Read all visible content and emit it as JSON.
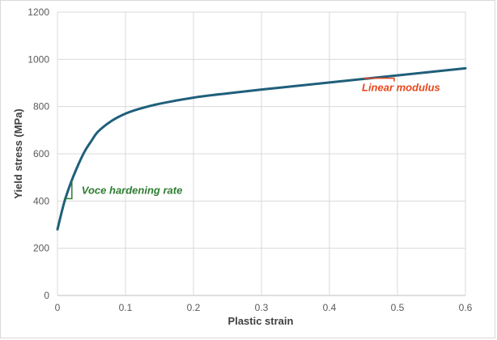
{
  "chart_data": {
    "type": "line",
    "xlabel": "Plastic strain",
    "ylabel": "Yield stress (MPa)",
    "xlim": [
      0,
      0.6
    ],
    "ylim": [
      0,
      1200
    ],
    "x_ticks": [
      "0",
      "0.1",
      "0.2",
      "0.3",
      "0.4",
      "0.5",
      "0.6"
    ],
    "y_ticks": [
      "0",
      "200",
      "400",
      "600",
      "800",
      "1000",
      "1200"
    ],
    "grid": "vertical-and-horizontal",
    "series": [
      {
        "color": "#1f5f7a",
        "x": [
          0,
          0.01,
          0.02,
          0.03,
          0.04,
          0.05,
          0.06,
          0.08,
          0.1,
          0.12,
          0.15,
          0.2,
          0.25,
          0.3,
          0.35,
          0.4,
          0.45,
          0.5,
          0.55,
          0.6
        ],
        "y": [
          280,
          395,
          480,
          550,
          610,
          655,
          695,
          740,
          770,
          790,
          812,
          838,
          856,
          872,
          887,
          902,
          917,
          932,
          947,
          962
        ]
      }
    ],
    "annotations": [
      {
        "text": "Voce hardening rate",
        "color": "#2e7d32",
        "x": 0.02,
        "y": 410
      },
      {
        "text": "Linear modulus",
        "color": "#e8461c",
        "x": 0.45,
        "y": 920
      }
    ]
  }
}
